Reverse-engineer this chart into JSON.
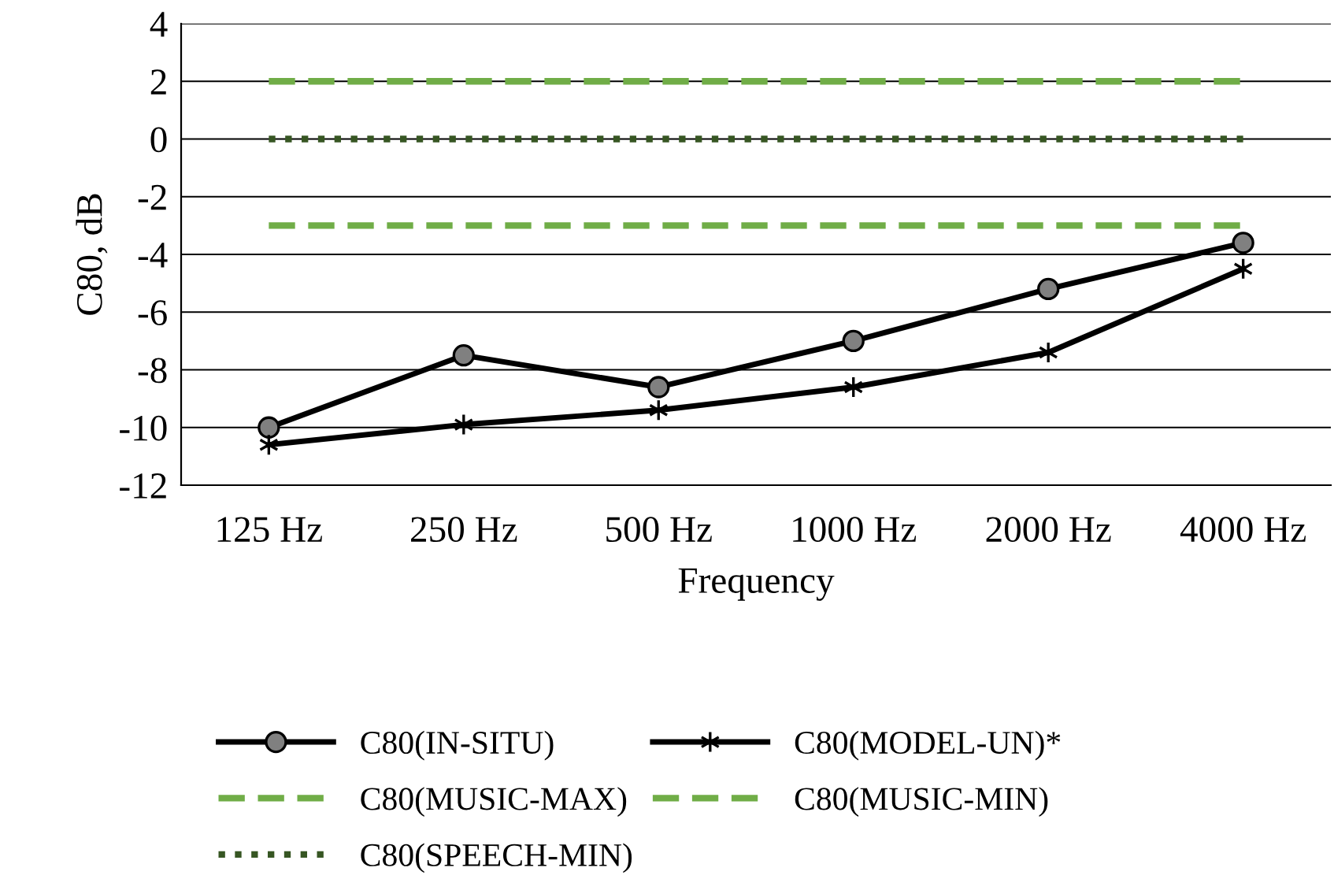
{
  "chart_data": {
    "type": "line",
    "xlabel": "Frequency",
    "ylabel": "C80, dB",
    "categories": [
      "125 Hz",
      "250 Hz",
      "500 Hz",
      "1000 Hz",
      "2000 Hz",
      "4000 Hz"
    ],
    "series": [
      {
        "name": "C80(IN-SITU)",
        "color": "#000000",
        "marker": "circle",
        "line_style": "solid",
        "values": [
          -10,
          -7.5,
          -8.6,
          -7,
          -5.2,
          -3.6
        ]
      },
      {
        "name": "C80(MODEL-UN)*",
        "color": "#000000",
        "marker": "cross",
        "line_style": "solid",
        "values": [
          -10.6,
          -9.9,
          -9.4,
          -8.6,
          -7.4,
          -4.5
        ]
      },
      {
        "name": "C80(MUSIC-MAX)",
        "color": "#70ad47",
        "marker": "none",
        "line_style": "dashed",
        "values": [
          2,
          2,
          2,
          2,
          2,
          2
        ]
      },
      {
        "name": "C80(MUSIC-MIN)",
        "color": "#70ad47",
        "marker": "none",
        "line_style": "dashed",
        "values": [
          -3,
          -3,
          -3,
          -3,
          -3,
          -3
        ]
      },
      {
        "name": "C80(SPEECH-MIN)",
        "color": "#375623",
        "marker": "none",
        "line_style": "dotted",
        "values": [
          0,
          0,
          0,
          0,
          0,
          0
        ]
      }
    ],
    "ylim": [
      -12,
      4
    ],
    "yticks": [
      -12,
      -10,
      -8,
      -6,
      -4,
      -2,
      0,
      2,
      4
    ],
    "grid": "y",
    "legend": "bottom"
  }
}
